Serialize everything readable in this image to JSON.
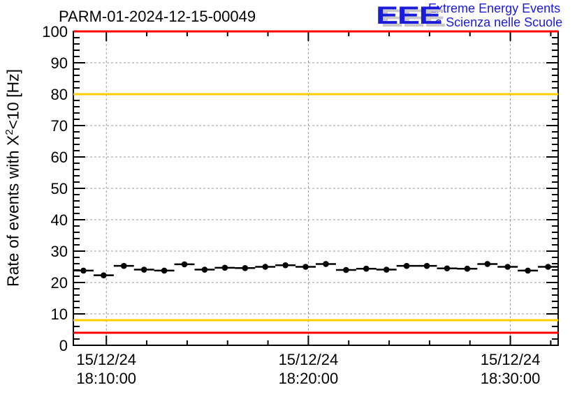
{
  "logo": {
    "acronym": "EEE",
    "line1": "Extreme Energy Events",
    "line2": "La Scienza nelle Scuole",
    "blue": "#1b1bdb",
    "shadow": "#c8c8c8"
  },
  "chart_data": {
    "type": "scatter",
    "title": "PARM-01-2024-12-15-00049",
    "ylabel": "Rate of events with X^2<10 [Hz]",
    "ylabel_parts": {
      "prefix": "Rate of events with X",
      "sup": "2",
      "suffix": "<10 [Hz]"
    },
    "ylim": [
      0,
      100
    ],
    "y_major_ticks": [
      0,
      10,
      20,
      30,
      40,
      50,
      60,
      70,
      80,
      90,
      100
    ],
    "y_minor_step": 2,
    "x_start": "18:08:22",
    "x_end": "18:32:22",
    "x_date": "15/12/24",
    "x_tick_times": [
      "18:10:00",
      "18:20:00",
      "18:30:00"
    ],
    "x_tick_labels": [
      [
        "15/12/24",
        "18:10:00"
      ],
      [
        "15/12/24",
        "18:20:00"
      ],
      [
        "15/12/24",
        "18:30:00"
      ]
    ],
    "x_minor_step_s": 120,
    "grid": true,
    "grid_color": "#999999",
    "frame_color": "#000000",
    "bin_width_s": 60,
    "thresholds": [
      {
        "y": 100,
        "color": "#ff0000"
      },
      {
        "y": 80,
        "color": "#ffcc00"
      },
      {
        "y": 8,
        "color": "#ffcc00"
      },
      {
        "y": 4,
        "color": "#ff0000"
      }
    ],
    "series": [
      {
        "name": "rate",
        "marker": "filled-circle",
        "color": "#000000",
        "yerr": 0.8,
        "points": [
          {
            "time": "18:08:52",
            "value": 23.8
          },
          {
            "time": "18:09:52",
            "value": 22.3
          },
          {
            "time": "18:10:52",
            "value": 25.3
          },
          {
            "time": "18:11:52",
            "value": 24.1
          },
          {
            "time": "18:12:52",
            "value": 23.8
          },
          {
            "time": "18:13:52",
            "value": 25.8
          },
          {
            "time": "18:14:52",
            "value": 24.1
          },
          {
            "time": "18:15:52",
            "value": 24.7
          },
          {
            "time": "18:16:52",
            "value": 24.6
          },
          {
            "time": "18:17:52",
            "value": 25.0
          },
          {
            "time": "18:18:52",
            "value": 25.5
          },
          {
            "time": "18:19:52",
            "value": 25.0
          },
          {
            "time": "18:20:52",
            "value": 25.9
          },
          {
            "time": "18:21:52",
            "value": 24.0
          },
          {
            "time": "18:22:52",
            "value": 24.4
          },
          {
            "time": "18:23:52",
            "value": 24.1
          },
          {
            "time": "18:24:52",
            "value": 25.3
          },
          {
            "time": "18:25:52",
            "value": 25.3
          },
          {
            "time": "18:26:52",
            "value": 24.5
          },
          {
            "time": "18:27:52",
            "value": 24.4
          },
          {
            "time": "18:28:52",
            "value": 25.9
          },
          {
            "time": "18:29:52",
            "value": 25.0
          },
          {
            "time": "18:30:52",
            "value": 23.8
          },
          {
            "time": "18:31:52",
            "value": 25.0
          }
        ]
      }
    ]
  }
}
